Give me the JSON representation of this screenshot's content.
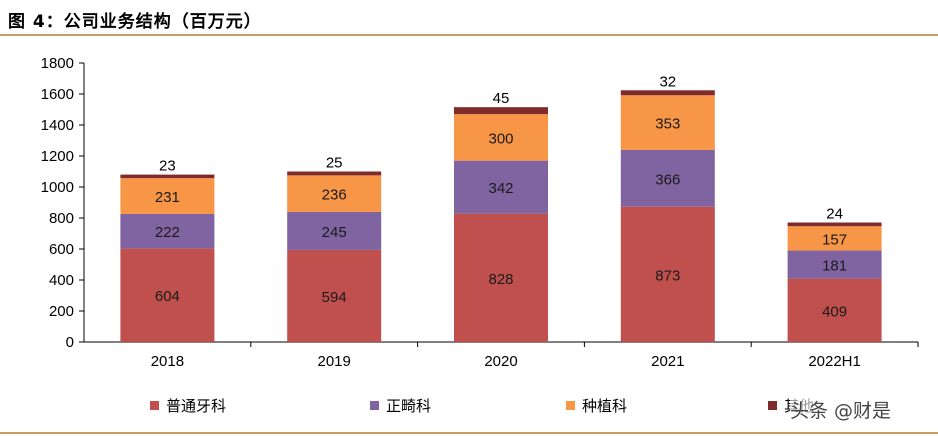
{
  "title": "图 4：公司业务结构（百万元）",
  "watermark": "头条 @财是",
  "colors": {
    "general_dentistry": "#c0504d",
    "orthodontics": "#8064a2",
    "implantology": "#f79646",
    "other": "#7f2b2b",
    "rule": "#c9a063"
  },
  "chart_data": {
    "type": "bar",
    "stacked": true,
    "title": "公司业务结构（百万元）",
    "categories": [
      "2018",
      "2019",
      "2020",
      "2021",
      "2022H1"
    ],
    "series": [
      {
        "name": "普通牙科",
        "key": "general_dentistry",
        "values": [
          604,
          594,
          828,
          873,
          409
        ]
      },
      {
        "name": "正畸科",
        "key": "orthodontics",
        "values": [
          222,
          245,
          342,
          366,
          181
        ]
      },
      {
        "name": "种植科",
        "key": "implantology",
        "values": [
          231,
          236,
          300,
          353,
          157
        ]
      },
      {
        "name": "其他",
        "key": "other",
        "values": [
          23,
          25,
          45,
          32,
          24
        ]
      }
    ],
    "ylim": [
      0,
      1800
    ],
    "yticks": [
      0,
      200,
      400,
      600,
      800,
      1000,
      1200,
      1400,
      1600,
      1800
    ],
    "legend_position": "bottom",
    "grid": false
  }
}
